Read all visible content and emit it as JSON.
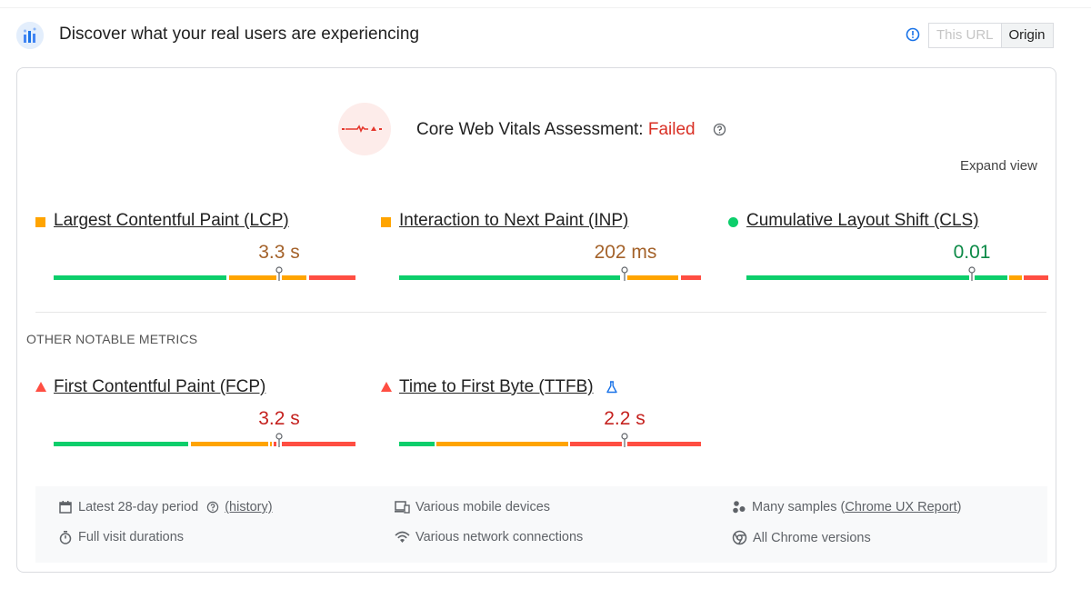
{
  "header": {
    "title": "Discover what your real users are experiencing",
    "toggle": {
      "this_url": "This URL",
      "origin": "Origin",
      "selected": "Origin"
    }
  },
  "assessment": {
    "label": "Core Web Vitals Assessment:",
    "status": "Failed",
    "status_color": "#d93025",
    "expand_label": "Expand view"
  },
  "core_metrics": [
    {
      "name": "Largest Contentful Paint (LCP)",
      "value": "3.3 s",
      "rating": "needs-improvement",
      "indicator": "orange-square",
      "marker_fraction": 0.75
    },
    {
      "name": "Interaction to Next Paint (INP)",
      "value": "202 ms",
      "rating": "needs-improvement",
      "indicator": "orange-square",
      "marker_fraction": 0.75
    },
    {
      "name": "Cumulative Layout Shift (CLS)",
      "value": "0.01",
      "rating": "good",
      "indicator": "green-circle",
      "marker_fraction": 0.75
    }
  ],
  "other": {
    "heading": "OTHER NOTABLE METRICS",
    "metrics": [
      {
        "name": "First Contentful Paint (FCP)",
        "value": "3.2 s",
        "rating": "poor",
        "indicator": "red-triangle",
        "marker_fraction": 0.75
      },
      {
        "name": "Time to First Byte (TTFB)",
        "value": "2.2 s",
        "rating": "poor",
        "indicator": "red-triangle",
        "experimental_icon": "flask-icon",
        "marker_fraction": 0.75
      }
    ]
  },
  "footer": {
    "period": "Latest 28-day period",
    "history_link": "(history)",
    "visits": "Full visit durations",
    "devices": "Various mobile devices",
    "network": "Various network connections",
    "samples_prefix": "Many samples (",
    "samples_link": "Chrome UX Report",
    "samples_suffix": ")",
    "chrome": "All Chrome versions"
  },
  "colors": {
    "good": "#0cce6b",
    "average": "#ffa400",
    "poor": "#ff4e42",
    "accent": "#1a73e8"
  }
}
